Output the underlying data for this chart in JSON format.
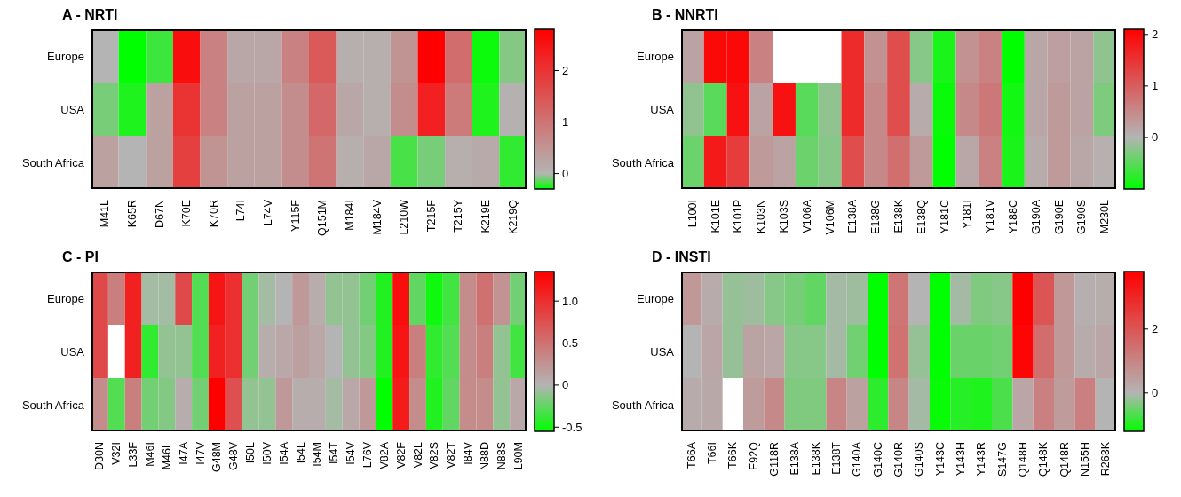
{
  "chart_data": [
    {
      "type": "heatmap",
      "title": "A - NRTI",
      "categories": [
        "M41L",
        "K65R",
        "D67N",
        "K70E",
        "K70R",
        "L74I",
        "L74V",
        "Y115F",
        "Q151M",
        "M184I",
        "M184V",
        "L210W",
        "T215F",
        "T215Y",
        "K219E",
        "K219Q"
      ],
      "y_categories": [
        "Europe",
        "USA",
        "South Africa"
      ],
      "cells": [
        [
          0,
          -0.3,
          -0.2,
          2.6,
          0.8,
          0.2,
          0.2,
          0.8,
          1.4,
          0.1,
          0.1,
          0.5,
          2.8,
          1.1,
          -0.28,
          -0.08
        ],
        [
          -0.1,
          -0.25,
          0.3,
          2.0,
          0.8,
          0.3,
          0.3,
          0.6,
          1.2,
          0.2,
          0.1,
          0.6,
          2.3,
          0.9,
          -0.25,
          0.05
        ],
        [
          0.3,
          0,
          0.3,
          1.8,
          0.5,
          0.3,
          0.3,
          0.6,
          1.0,
          0.1,
          0.2,
          -0.18,
          -0.1,
          0.1,
          0.15,
          -0.22
        ]
      ],
      "clim": [
        -0.3,
        2.8
      ],
      "cticks": [
        0,
        1,
        2
      ]
    },
    {
      "type": "heatmap",
      "title": "B - NNRTI",
      "categories": [
        "L100I",
        "K101E",
        "K101P",
        "K103N",
        "K103S",
        "V106A",
        "V106M",
        "E138A",
        "E138G",
        "E138K",
        "E138Q",
        "Y181C",
        "Y181I",
        "Y181V",
        "Y188C",
        "G190A",
        "G190E",
        "G190S",
        "M230L"
      ],
      "y_categories": [
        "Europe",
        "USA",
        "South Africa"
      ],
      "cells": [
        [
          0.2,
          2.0,
          2.0,
          0.6,
          null,
          null,
          null,
          1.6,
          0.4,
          1.2,
          -0.25,
          -0.85,
          0.4,
          0.6,
          -1.0,
          0.15,
          0.25,
          0.2,
          -0.2
        ],
        [
          -0.2,
          -0.5,
          1.9,
          0.2,
          1.9,
          -0.5,
          -0.2,
          1.6,
          0.5,
          1.2,
          0.1,
          -0.95,
          0.5,
          0.7,
          -0.9,
          0.15,
          0.3,
          0.2,
          -0.3
        ],
        [
          -0.4,
          1.8,
          1.4,
          0.3,
          0.2,
          -0.4,
          -0.25,
          1.2,
          0.5,
          0.8,
          0.3,
          -1.0,
          0.15,
          0.6,
          -0.85,
          0.1,
          0.3,
          0.15,
          0.05
        ]
      ],
      "clim": [
        -1,
        2.1
      ],
      "cticks": [
        0,
        1,
        2
      ]
    },
    {
      "type": "heatmap",
      "title": "C - PI",
      "categories": [
        "D30N",
        "V32I",
        "L33F",
        "M46I",
        "M46L",
        "I47A",
        "I47V",
        "G48M",
        "G48V",
        "I50L",
        "I50V",
        "I54A",
        "I54L",
        "I54M",
        "I54T",
        "I54V",
        "L76V",
        "V82A",
        "V82F",
        "V82L",
        "V82S",
        "V82T",
        "I84V",
        "N88D",
        "N88S",
        "L90M"
      ],
      "y_categories": [
        "Europe",
        "USA",
        "South Africa"
      ],
      "cells": [
        [
          0.8,
          0.4,
          1.1,
          -0.05,
          -0.05,
          0.8,
          -0.3,
          1.2,
          1.0,
          -0.2,
          -0.05,
          0,
          0.2,
          0.05,
          -0.1,
          -0.1,
          -0.2,
          -0.45,
          1.25,
          -0.25,
          -0.5,
          -0.35,
          0.3,
          0.5,
          0.25,
          -0.2
        ],
        [
          0.8,
          null,
          1.1,
          -0.4,
          -0.1,
          -0.1,
          -0.3,
          1.1,
          1.0,
          -0.2,
          0.05,
          0.1,
          0.15,
          0.1,
          0,
          -0.1,
          -0.15,
          -0.45,
          1.2,
          0.4,
          -0.4,
          -0.3,
          0.3,
          0.4,
          -0.1,
          -0.35
        ],
        [
          0.3,
          -0.3,
          0.4,
          -0.2,
          -0.15,
          0.05,
          -0.2,
          1.35,
          0.75,
          -0.1,
          -0.1,
          0.2,
          0.05,
          0.05,
          -0.05,
          0.1,
          0.2,
          -0.55,
          1.15,
          0.3,
          -0.45,
          -0.25,
          0.3,
          0.3,
          -0.1,
          0.1
        ]
      ],
      "clim": [
        -0.55,
        1.35
      ],
      "cticks": [
        {
          "value": 1,
          "label": "1.0"
        },
        0.5,
        0,
        -0.5
      ]
    },
    {
      "type": "heatmap",
      "title": "D - INSTI",
      "categories": [
        "T66A",
        "T66I",
        "T66K",
        "E92Q",
        "G118R",
        "E138A",
        "E138K",
        "E138T",
        "G140A",
        "G140C",
        "G140R",
        "G140S",
        "Y143C",
        "Y143H",
        "Y143R",
        "S147G",
        "Q148H",
        "Q148K",
        "Q148R",
        "N155H",
        "R263K"
      ],
      "y_categories": [
        "Europe",
        "USA",
        "South Africa"
      ],
      "cells": [
        [
          0.6,
          0.2,
          -0.2,
          -0.15,
          -0.3,
          -0.4,
          -0.55,
          -0.1,
          -0.15,
          -1.2,
          1.3,
          0,
          -1.2,
          -0.1,
          -0.35,
          -0.3,
          3.8,
          2.0,
          0.6,
          0.1,
          0.15
        ],
        [
          0,
          0.3,
          -0.2,
          0.35,
          0.3,
          -0.3,
          -0.3,
          -0.1,
          -0.45,
          -1.2,
          1.4,
          -0.2,
          -1.2,
          -0.5,
          -0.5,
          -0.45,
          3.7,
          1.5,
          0.6,
          0.2,
          0.3
        ],
        [
          0.2,
          0.25,
          null,
          0.5,
          0.9,
          -0.35,
          -0.35,
          1.0,
          0.4,
          -0.9,
          1.0,
          -0.1,
          -1.15,
          -0.95,
          -1.0,
          -0.7,
          0.3,
          1.1,
          0.5,
          1.1,
          0
        ]
      ],
      "clim": [
        -1.2,
        3.8
      ],
      "cticks": [
        0,
        2
      ]
    }
  ]
}
